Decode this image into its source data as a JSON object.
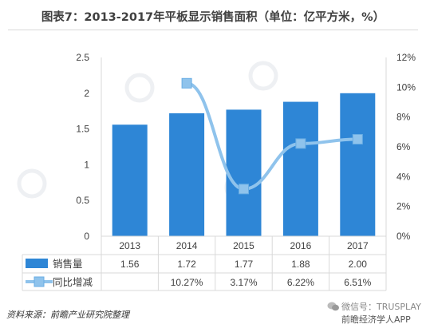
{
  "title": "图表7：2013-2017年平板显示销售面积（单位：亿平方米，%）",
  "source": "资料来源：前瞻产业研究院整理",
  "wechat_label": "微信号：TRUSPLAY",
  "app_label": "前瞻经济学人APP",
  "colors": {
    "bar": "#2e86d6",
    "line": "#8fc3ec",
    "grid": "#d9d9d9"
  },
  "chart_data": {
    "type": "bar",
    "categories": [
      "2013",
      "2014",
      "2015",
      "2016",
      "2017"
    ],
    "series": [
      {
        "name": "销售量",
        "type": "bar",
        "axis": "left",
        "values": [
          1.56,
          1.72,
          1.77,
          1.88,
          2.0
        ],
        "labels": [
          "1.56",
          "1.72",
          "1.77",
          "1.88",
          "2.00"
        ]
      },
      {
        "name": "同比增减",
        "type": "line",
        "axis": "right",
        "values": [
          null,
          10.27,
          3.17,
          6.22,
          6.51
        ],
        "labels": [
          "",
          "10.27%",
          "3.17%",
          "6.22%",
          "6.51%"
        ]
      }
    ],
    "y_left": {
      "range": [
        0,
        2.5
      ],
      "ticks": [
        "0",
        "0.5",
        "1",
        "1.5",
        "2",
        "2.5"
      ]
    },
    "y_right": {
      "range": [
        0,
        12
      ],
      "ticks": [
        "0%",
        "2%",
        "4%",
        "6%",
        "8%",
        "10%",
        "12%"
      ]
    },
    "grid": false,
    "legend": "data-table"
  }
}
